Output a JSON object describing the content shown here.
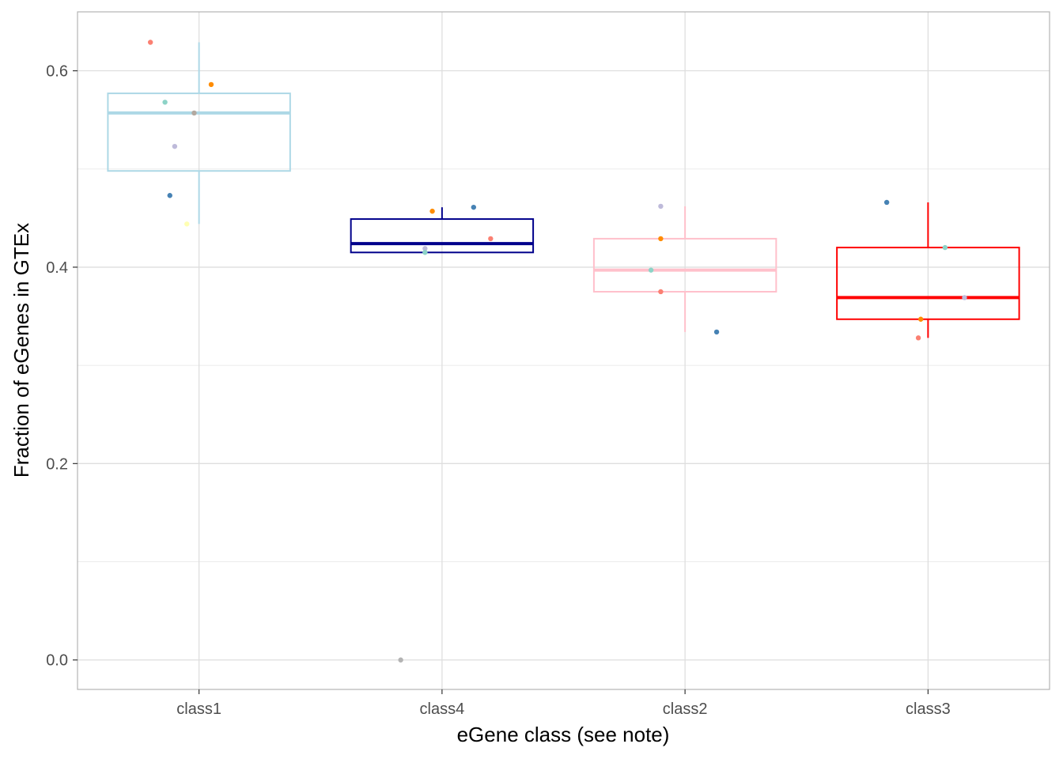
{
  "chart_data": {
    "type": "box",
    "title": "",
    "xlabel": "eGene class (see note)",
    "ylabel": "Fraction of eGenes in GTEx",
    "ylim": [
      -0.03,
      0.66
    ],
    "grid": true,
    "y_ticks": [
      {
        "value": 0.0,
        "label": "0.0"
      },
      {
        "value": 0.2,
        "label": "0.2"
      },
      {
        "value": 0.4,
        "label": "0.4"
      },
      {
        "value": 0.6,
        "label": "0.6"
      }
    ],
    "y_minor_ticks": [
      0.1,
      0.3,
      0.5
    ],
    "categories": [
      "class1",
      "class4",
      "class2",
      "class3"
    ],
    "boxes": [
      {
        "category": "class1",
        "color": "#add8e6",
        "whisker_low": 0.444,
        "q1": 0.498,
        "median": 0.557,
        "q3": 0.577,
        "whisker_high": 0.629
      },
      {
        "category": "class4",
        "color": "#00008b",
        "whisker_low": 0.415,
        "q1": 0.415,
        "median": 0.424,
        "q3": 0.449,
        "whisker_high": 0.461
      },
      {
        "category": "class2",
        "color": "#ffc0cb",
        "whisker_low": 0.334,
        "q1": 0.375,
        "median": 0.397,
        "q3": 0.429,
        "whisker_high": 0.462
      },
      {
        "category": "class3",
        "color": "#ff0000",
        "whisker_low": 0.328,
        "q1": 0.347,
        "median": 0.369,
        "q3": 0.42,
        "whisker_high": 0.466
      }
    ],
    "points": [
      {
        "category": "class1",
        "offset": -0.2,
        "y": 0.629,
        "color": "#fb8072"
      },
      {
        "category": "class1",
        "offset": 0.05,
        "y": 0.586,
        "color": "#ff8c00"
      },
      {
        "category": "class1",
        "offset": -0.14,
        "y": 0.568,
        "color": "#8dd3c7"
      },
      {
        "category": "class1",
        "offset": -0.02,
        "y": 0.557,
        "color": "#b3a9a0"
      },
      {
        "category": "class1",
        "offset": -0.1,
        "y": 0.523,
        "color": "#bebada"
      },
      {
        "category": "class1",
        "offset": -0.12,
        "y": 0.473,
        "color": "#4682b4"
      },
      {
        "category": "class1",
        "offset": -0.05,
        "y": 0.444,
        "color": "#ffffb3"
      },
      {
        "category": "class4",
        "offset": 0.13,
        "y": 0.461,
        "color": "#4682b4"
      },
      {
        "category": "class4",
        "offset": -0.04,
        "y": 0.457,
        "color": "#ff8c00"
      },
      {
        "category": "class4",
        "offset": 0.2,
        "y": 0.429,
        "color": "#fb8072"
      },
      {
        "category": "class4",
        "offset": -0.07,
        "y": 0.419,
        "color": "#bebada"
      },
      {
        "category": "class4",
        "offset": -0.07,
        "y": 0.415,
        "color": "#8dd3c7"
      },
      {
        "category": "class4",
        "offset": -0.17,
        "y": 0.0,
        "color": "#b3b3b3"
      },
      {
        "category": "class2",
        "offset": -0.1,
        "y": 0.462,
        "color": "#bebada"
      },
      {
        "category": "class2",
        "offset": -0.1,
        "y": 0.429,
        "color": "#ff8c00"
      },
      {
        "category": "class2",
        "offset": -0.14,
        "y": 0.397,
        "color": "#8dd3c7"
      },
      {
        "category": "class2",
        "offset": -0.1,
        "y": 0.375,
        "color": "#fb8072"
      },
      {
        "category": "class2",
        "offset": 0.13,
        "y": 0.334,
        "color": "#4682b4"
      },
      {
        "category": "class3",
        "offset": -0.17,
        "y": 0.466,
        "color": "#4682b4"
      },
      {
        "category": "class3",
        "offset": 0.07,
        "y": 0.42,
        "color": "#8dd3c7"
      },
      {
        "category": "class3",
        "offset": 0.15,
        "y": 0.369,
        "color": "#bebada"
      },
      {
        "category": "class3",
        "offset": -0.03,
        "y": 0.347,
        "color": "#ff8c00"
      },
      {
        "category": "class3",
        "offset": -0.04,
        "y": 0.328,
        "color": "#fb8072"
      }
    ]
  }
}
